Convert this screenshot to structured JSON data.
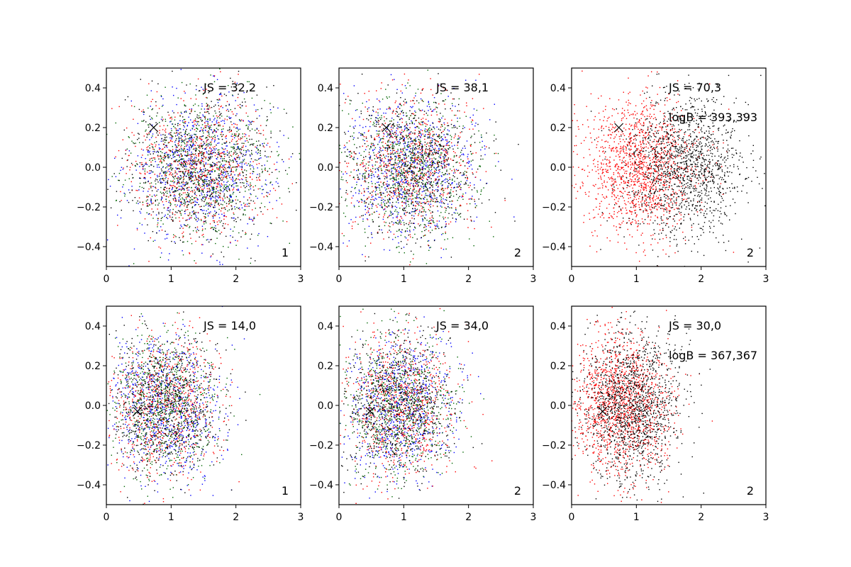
{
  "figure": {
    "panels_label": "6 scatter panels (2 rows x 3 columns)"
  },
  "chart_data": [
    {
      "type": "scatter",
      "xlim": [
        0,
        3
      ],
      "ylim": [
        -0.5,
        0.5
      ],
      "xticks": [
        "0",
        "1",
        "2",
        "3"
      ],
      "yticks": [
        "-0.4",
        "-0.2",
        "0.0",
        "0.2",
        "0.4"
      ],
      "annotation": "JS = 32,2",
      "corner_label": "1",
      "marker": {
        "x": 0.73,
        "y": 0.2
      },
      "series_colors": [
        "#0000ff",
        "#ff0000",
        "#006400",
        "#000000"
      ],
      "cloud": {
        "x_mean": 1.45,
        "x_sd": 0.55,
        "y_mean": 0.0,
        "y_sd": 0.18,
        "points_per_series": 750
      }
    },
    {
      "type": "scatter",
      "xlim": [
        0,
        3
      ],
      "ylim": [
        -0.5,
        0.5
      ],
      "xticks": [
        "0",
        "1",
        "2",
        "3"
      ],
      "yticks": [
        "-0.4",
        "-0.2",
        "0.0",
        "0.2",
        "0.4"
      ],
      "annotation": "JS = 38,1",
      "corner_label": "2",
      "marker": {
        "x": 0.73,
        "y": 0.2
      },
      "series_colors": [
        "#0000ff",
        "#ff0000",
        "#006400",
        "#000000"
      ],
      "cloud": {
        "x_mean": 1.1,
        "x_sd": 0.5,
        "y_mean": 0.0,
        "y_sd": 0.18,
        "points_per_series": 750
      }
    },
    {
      "type": "scatter",
      "xlim": [
        0,
        3
      ],
      "ylim": [
        -0.5,
        0.5
      ],
      "xticks": [
        "0",
        "1",
        "2",
        "3"
      ],
      "yticks": [
        "-0.4",
        "-0.2",
        "0.0",
        "0.2",
        "0.4"
      ],
      "annotation": "JS = 70,3",
      "annotation2": "logB = 393,393",
      "corner_label": "2",
      "marker": {
        "x": 0.73,
        "y": 0.2
      },
      "series_colors": [
        "#ff0000",
        "#000000"
      ],
      "series_x_means": [
        1.05,
        1.75
      ],
      "cloud": {
        "x_mean": 1.05,
        "x_sd": 0.45,
        "y_mean": 0.0,
        "y_sd": 0.18,
        "points_per_series": 1400
      }
    },
    {
      "type": "scatter",
      "xlim": [
        0,
        3
      ],
      "ylim": [
        -0.5,
        0.5
      ],
      "xticks": [
        "0",
        "1",
        "2",
        "3"
      ],
      "yticks": [
        "-0.4",
        "-0.2",
        "0.0",
        "0.2",
        "0.4"
      ],
      "annotation": "JS = 14,0",
      "corner_label": "1",
      "marker": {
        "x": 0.48,
        "y": -0.03
      },
      "series_colors": [
        "#0000ff",
        "#ff0000",
        "#006400",
        "#000000"
      ],
      "cloud": {
        "x_mean": 0.9,
        "x_sd": 0.42,
        "y_mean": 0.0,
        "y_sd": 0.18,
        "points_per_series": 750
      }
    },
    {
      "type": "scatter",
      "xlim": [
        0,
        3
      ],
      "ylim": [
        -0.5,
        0.5
      ],
      "xticks": [
        "0",
        "1",
        "2",
        "3"
      ],
      "yticks": [
        "-0.4",
        "-0.2",
        "0.0",
        "0.2",
        "0.4"
      ],
      "annotation": "JS = 34,0",
      "corner_label": "2",
      "marker": {
        "x": 0.48,
        "y": -0.03
      },
      "series_colors": [
        "#0000ff",
        "#ff0000",
        "#006400",
        "#000000"
      ],
      "cloud": {
        "x_mean": 0.95,
        "x_sd": 0.42,
        "y_mean": 0.0,
        "y_sd": 0.18,
        "points_per_series": 750
      }
    },
    {
      "type": "scatter",
      "xlim": [
        0,
        3
      ],
      "ylim": [
        -0.5,
        0.5
      ],
      "xticks": [
        "0",
        "1",
        "2",
        "3"
      ],
      "yticks": [
        "-0.4",
        "-0.2",
        "0.0",
        "0.2",
        "0.4"
      ],
      "annotation": "JS = 30,0",
      "annotation2": "logB = 367,367",
      "corner_label": "2",
      "marker": {
        "x": 0.48,
        "y": -0.03
      },
      "series_colors": [
        "#ff0000",
        "#000000"
      ],
      "series_x_means": [
        0.75,
        0.95
      ],
      "cloud": {
        "x_mean": 0.8,
        "x_sd": 0.38,
        "y_mean": 0.0,
        "y_sd": 0.18,
        "points_per_series": 1400
      }
    }
  ]
}
